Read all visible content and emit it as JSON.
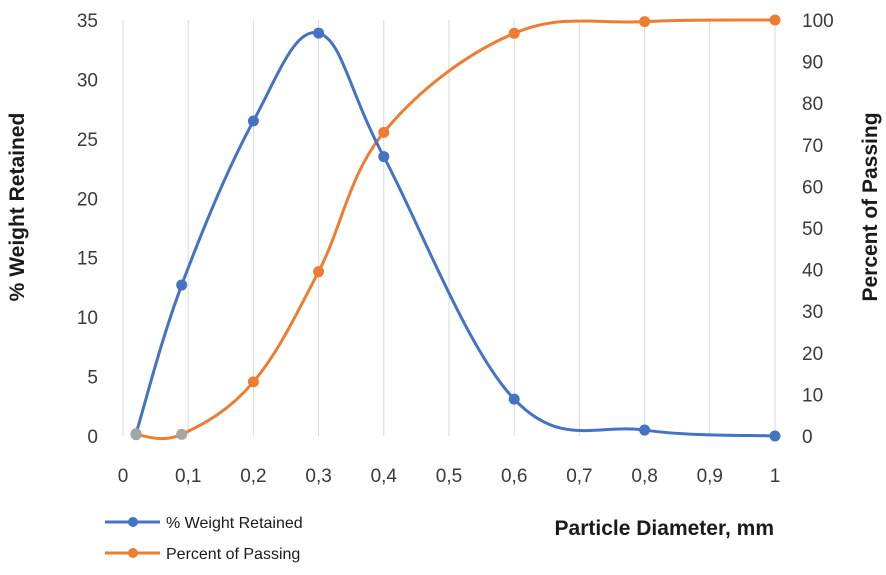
{
  "chart_data": {
    "type": "line",
    "xlabel": "Particle Diameter, mm",
    "ylabel": "% Weight Retained",
    "y2label": "Percent of Passing",
    "xlim": [
      0,
      1
    ],
    "ylim": [
      0,
      35
    ],
    "y2lim": [
      0,
      100
    ],
    "x_ticks": [
      0,
      0.1,
      0.2,
      0.3,
      0.4,
      0.5,
      0.6,
      0.7,
      0.8,
      0.9,
      1
    ],
    "x_tick_labels": [
      "0",
      "0,1",
      "0,2",
      "0,3",
      "0,4",
      "0,5",
      "0,6",
      "0,7",
      "0,8",
      "0,9",
      "1"
    ],
    "y_ticks": [
      0,
      5,
      10,
      15,
      20,
      25,
      30,
      35
    ],
    "y_tick_labels": [
      "0",
      "5",
      "10",
      "15",
      "20",
      "25",
      "30",
      "35"
    ],
    "y2_ticks": [
      0,
      10,
      20,
      30,
      40,
      50,
      60,
      70,
      80,
      90,
      100
    ],
    "y2_tick_labels": [
      "0",
      "10",
      "20",
      "30",
      "40",
      "50",
      "60",
      "70",
      "80",
      "90",
      "100"
    ],
    "grid": "vertical",
    "legend_position": "bottom-left",
    "series": [
      {
        "name": "% Weight Retained",
        "axis": "left",
        "color": "#4472C4",
        "x": [
          0.02,
          0.09,
          0.2,
          0.3,
          0.4,
          0.6,
          0.8,
          1.0
        ],
        "values": [
          0.2,
          12.7,
          26.5,
          33.9,
          23.5,
          3.1,
          0.5,
          0.0
        ]
      },
      {
        "name": "Percent of Passing",
        "axis": "right",
        "color": "#ED7D31",
        "x": [
          0.02,
          0.09,
          0.2,
          0.3,
          0.4,
          0.6,
          0.8,
          1.0
        ],
        "values": [
          0.3,
          0.4,
          13.0,
          39.5,
          73.0,
          96.8,
          99.6,
          100.0
        ]
      }
    ]
  }
}
